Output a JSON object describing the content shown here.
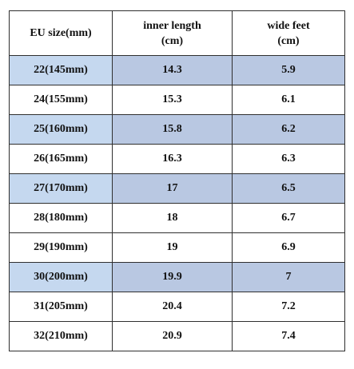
{
  "table": {
    "headers": [
      {
        "line1": "EU size(mm)",
        "line2": ""
      },
      {
        "line1": "inner length",
        "line2": "(cm)"
      },
      {
        "line1": "wide feet",
        "line2": "(cm)"
      }
    ],
    "rows": [
      {
        "size": "22(145mm)",
        "length": "14.3",
        "wide": "5.9",
        "highlighted": true
      },
      {
        "size": "24(155mm)",
        "length": "15.3",
        "wide": "6.1",
        "highlighted": false
      },
      {
        "size": "25(160mm)",
        "length": "15.8",
        "wide": "6.2",
        "highlighted": true
      },
      {
        "size": "26(165mm)",
        "length": "16.3",
        "wide": "6.3",
        "highlighted": false
      },
      {
        "size": "27(170mm)",
        "length": "17",
        "wide": "6.5",
        "highlighted": true
      },
      {
        "size": "28(180mm)",
        "length": "18",
        "wide": "6.7",
        "highlighted": false
      },
      {
        "size": "29(190mm)",
        "length": "19",
        "wide": "6.9",
        "highlighted": false
      },
      {
        "size": "30(200mm)",
        "length": "19.9",
        "wide": "7",
        "highlighted": true
      },
      {
        "size": "31(205mm)",
        "length": "20.4",
        "wide": "7.2",
        "highlighted": false
      },
      {
        "size": "32(210mm)",
        "length": "20.9",
        "wide": "7.4",
        "highlighted": false
      }
    ]
  },
  "colors": {
    "highlight_size_cell": "#c5d8ef",
    "highlight_value_cells": "#b9c8e2",
    "border": "#2f2f2f"
  }
}
